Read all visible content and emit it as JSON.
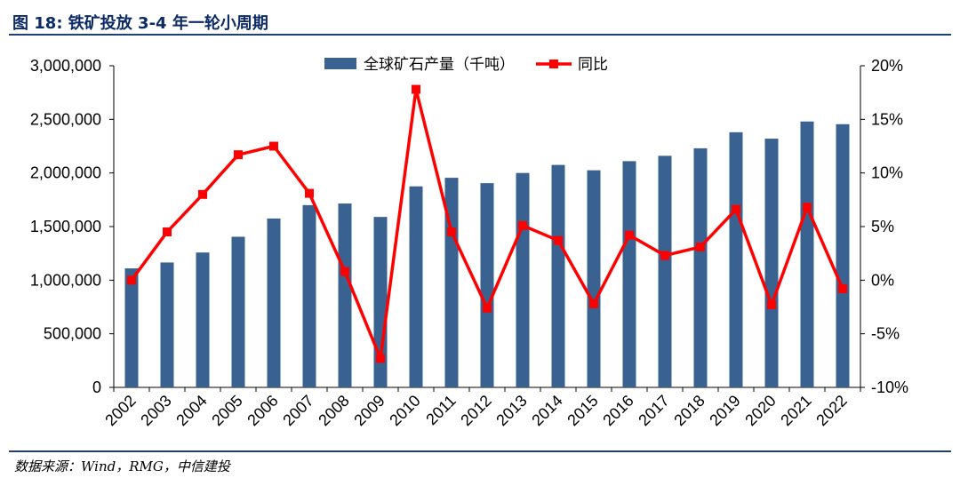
{
  "header": {
    "title": "图 18: 铁矿投放 3-4 年一轮小周期"
  },
  "footer": {
    "source": "数据来源：Wind，RMG，中信建投"
  },
  "colors": {
    "bar": "#3a6291",
    "line": "#ff0000",
    "rule": "#1f3f7a",
    "title": "#0b2a66"
  },
  "chart_data": {
    "type": "bar+line",
    "title": "",
    "categories": [
      "2002",
      "2003",
      "2004",
      "2005",
      "2006",
      "2007",
      "2008",
      "2009",
      "2010",
      "2011",
      "2012",
      "2013",
      "2014",
      "2015",
      "2016",
      "2017",
      "2018",
      "2019",
      "2020",
      "2021",
      "2022"
    ],
    "series": [
      {
        "name": "全球矿石产量（千吨）",
        "type": "bar",
        "axis": "left",
        "values": [
          1110000,
          1165000,
          1258000,
          1405000,
          1575000,
          1700000,
          1715000,
          1590000,
          1875000,
          1955000,
          1905000,
          2000000,
          2075000,
          2025000,
          2110000,
          2160000,
          2230000,
          2380000,
          2320000,
          2480000,
          2455000
        ]
      },
      {
        "name": "同比",
        "type": "line",
        "axis": "right",
        "values": [
          0.0,
          4.5,
          8.0,
          11.7,
          12.5,
          8.1,
          0.8,
          -7.3,
          17.8,
          4.5,
          -2.6,
          5.1,
          3.7,
          -2.2,
          4.2,
          2.3,
          3.1,
          6.6,
          -2.3,
          6.8,
          -0.8
        ]
      }
    ],
    "y_left": {
      "min": 0,
      "max": 3000000,
      "ticks": [
        0,
        500000,
        1000000,
        1500000,
        2000000,
        2500000,
        3000000
      ],
      "tick_labels": [
        "0",
        "500,000",
        "1,000,000",
        "1,500,000",
        "2,000,000",
        "2,500,000",
        "3,000,000"
      ]
    },
    "y_right": {
      "min": -10,
      "max": 20,
      "ticks": [
        -10,
        -5,
        0,
        5,
        10,
        15,
        20
      ],
      "tick_labels": [
        "-10%",
        "-5%",
        "0%",
        "5%",
        "10%",
        "15%",
        "20%"
      ]
    },
    "legend": "top-center",
    "grid": false
  }
}
